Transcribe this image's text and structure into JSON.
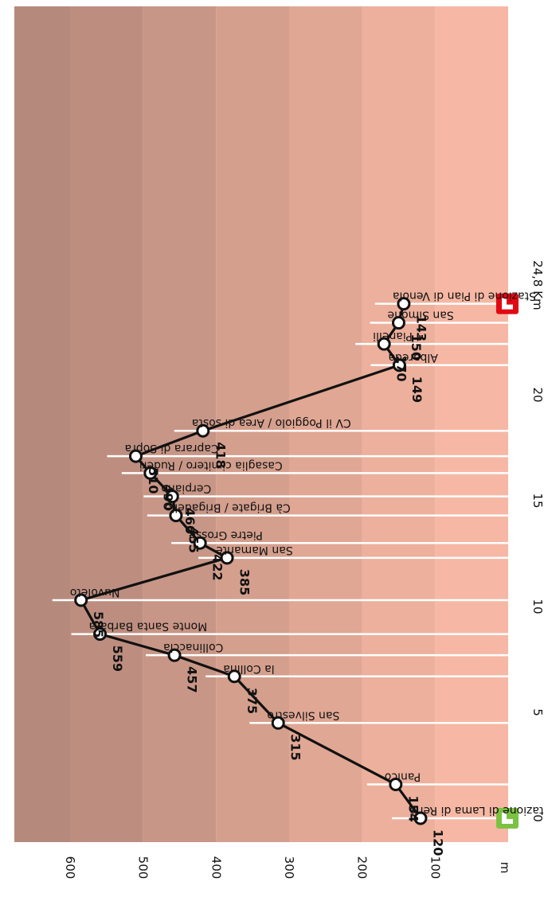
{
  "chart_data": {
    "type": "line",
    "orientation": "rotated-90",
    "x_unit": "Km",
    "y_unit": "m",
    "x_ticks": [
      "0",
      "5",
      "10",
      "15",
      "20",
      "24,8 Km"
    ],
    "y_ticks": [
      "100",
      "200",
      "300",
      "400",
      "500",
      "600"
    ],
    "xlim": [
      0,
      24.8
    ],
    "ylim": [
      0,
      680
    ],
    "start_icon_color": "#7cc242",
    "end_icon_color": "#e30613",
    "line_color": "#111111",
    "band_colors": [
      "#f6b8a4",
      "#ecb09c",
      "#e0a794",
      "#d49f8d",
      "#c89686",
      "#bd8e80",
      "#b58a7c"
    ],
    "points": [
      {
        "x": 0.0,
        "y": 120,
        "label": "120",
        "name": "Stazione di Lama di Reno"
      },
      {
        "x": 1.6,
        "y": 154,
        "label": "154",
        "name": "Panico"
      },
      {
        "x": 4.5,
        "y": 315,
        "label": "315",
        "name": "San Silvestro"
      },
      {
        "x": 6.7,
        "y": 375,
        "label": "375",
        "name": "la Collina"
      },
      {
        "x": 7.7,
        "y": 457,
        "label": "457",
        "name": "Collinaccia"
      },
      {
        "x": 8.7,
        "y": 559,
        "label": "559",
        "name": "Monte Santa Barbara"
      },
      {
        "x": 10.3,
        "y": 585,
        "label": "585",
        "name": "Nuvoleto"
      },
      {
        "x": 12.3,
        "y": 385,
        "label": "385",
        "name": "San Mamante"
      },
      {
        "x": 13.0,
        "y": 422,
        "label": "422",
        "name": "Pietre Grosse"
      },
      {
        "x": 14.3,
        "y": 455,
        "label": "455",
        "name": "Cà Brigate / Brigadello"
      },
      {
        "x": 15.2,
        "y": 460,
        "label": "460",
        "name": "Cerpiano"
      },
      {
        "x": 16.3,
        "y": 490,
        "label": "490",
        "name": "Casaglia cimitero / Ruderi"
      },
      {
        "x": 17.1,
        "y": 510,
        "label": "510",
        "name": "Caprara di Sopra"
      },
      {
        "x": 18.3,
        "y": 418,
        "label": "418",
        "name": "CV il Poggiolo / Area di sosta"
      },
      {
        "x": 21.4,
        "y": 149,
        "label": "149",
        "name": "Albareda"
      },
      {
        "x": 22.4,
        "y": 170,
        "label": "170",
        "name": "I Pianelli"
      },
      {
        "x": 23.4,
        "y": 150,
        "label": "150",
        "name": "San Simone"
      },
      {
        "x": 24.3,
        "y": 143,
        "label": "143",
        "name": "Stazione di Pian di Venola"
      }
    ]
  }
}
